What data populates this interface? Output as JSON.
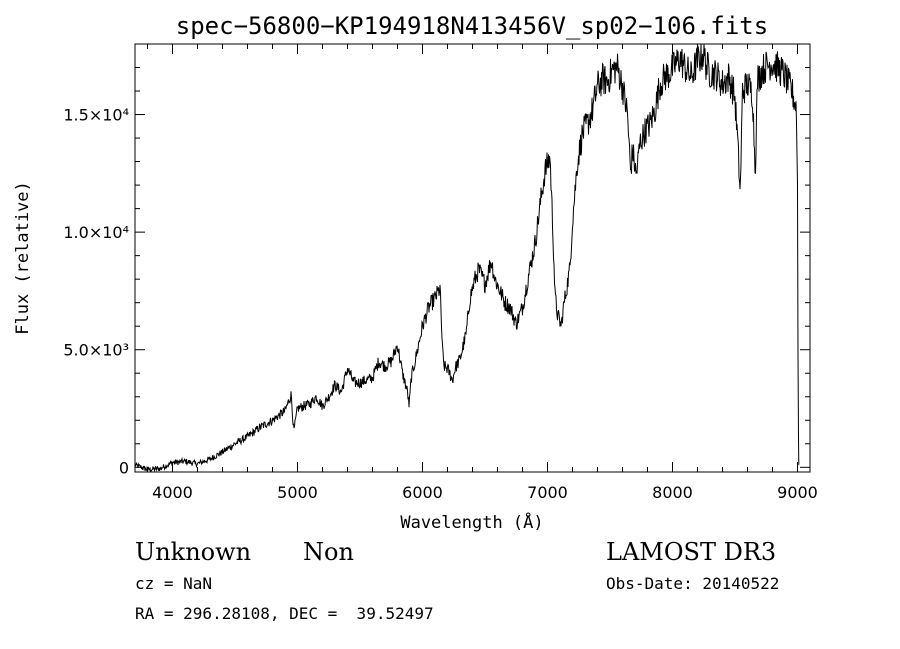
{
  "chart_data": {
    "type": "line",
    "title": "spec−56800−KP194918N413456V_sp02−106.fits",
    "xlabel": "Wavelength (Å)",
    "ylabel": "Flux (relative)",
    "xlim": [
      3700,
      9100
    ],
    "ylim": [
      -200,
      18000
    ],
    "xticks": [
      {
        "value": 4000,
        "label": "4000"
      },
      {
        "value": 5000,
        "label": "5000"
      },
      {
        "value": 6000,
        "label": "6000"
      },
      {
        "value": 7000,
        "label": "7000"
      },
      {
        "value": 8000,
        "label": "8000"
      },
      {
        "value": 9000,
        "label": "9000"
      }
    ],
    "yticks": [
      {
        "value": 0,
        "label": "0"
      },
      {
        "value": 5000,
        "label": "5.0×10³"
      },
      {
        "value": 10000,
        "label": "1.0×10⁴"
      },
      {
        "value": 15000,
        "label": "1.5×10⁴"
      }
    ],
    "series": [
      {
        "name": "flux",
        "x": [
          3700,
          3800,
          3900,
          4000,
          4100,
          4200,
          4300,
          4400,
          4500,
          4600,
          4700,
          4800,
          4900,
          4950,
          4970,
          5000,
          5050,
          5100,
          5150,
          5200,
          5250,
          5300,
          5350,
          5400,
          5450,
          5500,
          5550,
          5600,
          5650,
          5700,
          5750,
          5800,
          5840,
          5880,
          5893,
          5910,
          5940,
          5980,
          6000,
          6050,
          6100,
          6140,
          6160,
          6170,
          6200,
          6240,
          6260,
          6280,
          6300,
          6350,
          6380,
          6420,
          6450,
          6500,
          6550,
          6580,
          6620,
          6660,
          6700,
          6750,
          6800,
          6850,
          6900,
          6950,
          6980,
          7020,
          7040,
          7050,
          7060,
          7080,
          7110,
          7130,
          7150,
          7180,
          7200,
          7240,
          7280,
          7320,
          7360,
          7400,
          7440,
          7480,
          7520,
          7560,
          7600,
          7640,
          7665,
          7680,
          7710,
          7740,
          7780,
          7820,
          7860,
          7900,
          7940,
          7980,
          8020,
          8060,
          8100,
          8150,
          8200,
          8250,
          8270,
          8300,
          8350,
          8400,
          8450,
          8498,
          8520,
          8542,
          8560,
          8600,
          8640,
          8662,
          8680,
          8720,
          8760,
          8800,
          8840,
          8880,
          8920,
          8960,
          8990,
          9000,
          9005,
          9010
        ],
        "y": [
          100,
          -100,
          -50,
          200,
          250,
          150,
          350,
          650,
          1000,
          1300,
          1700,
          2000,
          2400,
          3100,
          1500,
          2500,
          2600,
          2700,
          3000,
          2600,
          3000,
          3500,
          3200,
          4200,
          3600,
          3600,
          3700,
          3800,
          4500,
          4300,
          4500,
          5200,
          4000,
          3200,
          2600,
          3800,
          4500,
          5500,
          6000,
          6800,
          7200,
          7600,
          5000,
          4300,
          4200,
          3700,
          4200,
          4400,
          4600,
          5700,
          7200,
          8000,
          8400,
          7800,
          8800,
          8000,
          7500,
          7000,
          6800,
          6100,
          6800,
          8200,
          9500,
          11500,
          12600,
          13200,
          10500,
          9000,
          7300,
          6500,
          6000,
          6900,
          7500,
          8500,
          10500,
          13000,
          14200,
          14600,
          15200,
          16200,
          16500,
          16400,
          16900,
          17000,
          16200,
          15000,
          12500,
          13500,
          12400,
          13800,
          14300,
          14600,
          15200,
          16300,
          16600,
          16800,
          17100,
          17400,
          17000,
          16600,
          17300,
          17600,
          17100,
          16800,
          16700,
          16300,
          16600,
          15800,
          14000,
          11600,
          16000,
          16300,
          15900,
          12600,
          16500,
          16900,
          17100,
          17200,
          17000,
          16800,
          16400,
          15900,
          15300,
          12000,
          3000,
          100
        ]
      }
    ]
  },
  "info": {
    "object_class": "Unknown",
    "subclass": "Non",
    "survey": "LAMOST DR3",
    "cz": "cz = NaN",
    "obs_date": "Obs-Date: 20140522",
    "coords": "RA = 296.28108, DEC =  39.52497"
  }
}
